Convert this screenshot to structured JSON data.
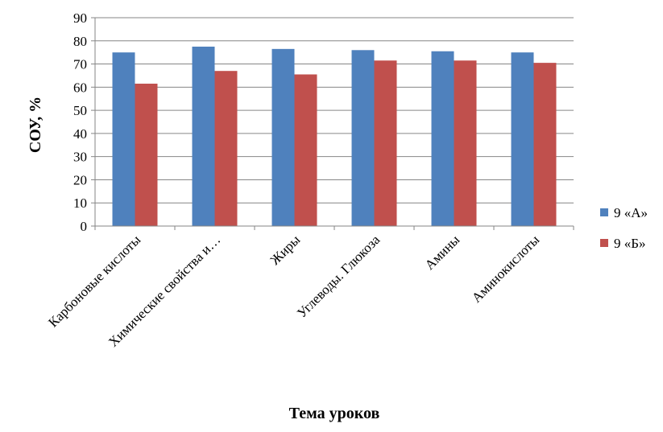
{
  "chart_data": {
    "type": "bar",
    "categories": [
      "Карбоновые кислоты",
      "Химические свойства и…",
      "Жиры",
      "Углеводы. Глюкоза",
      "Амины",
      "Аминокислоты"
    ],
    "series": [
      {
        "name": "9 «А»",
        "color": "#4f81bd",
        "values": [
          75,
          77.5,
          76.5,
          76,
          75.5,
          75
        ]
      },
      {
        "name": "9 «Б»",
        "color": "#c0504d",
        "values": [
          61.5,
          67,
          65.5,
          71.5,
          71.5,
          70.5
        ]
      }
    ],
    "xlabel": "Тема уроков",
    "ylabel": "СОУ, %",
    "ylim": [
      0,
      90
    ],
    "yticks": [
      "0",
      "10",
      "20",
      "30",
      "40",
      "50",
      "60",
      "70",
      "80",
      "90"
    ],
    "grid": true,
    "legend_position": "right"
  }
}
